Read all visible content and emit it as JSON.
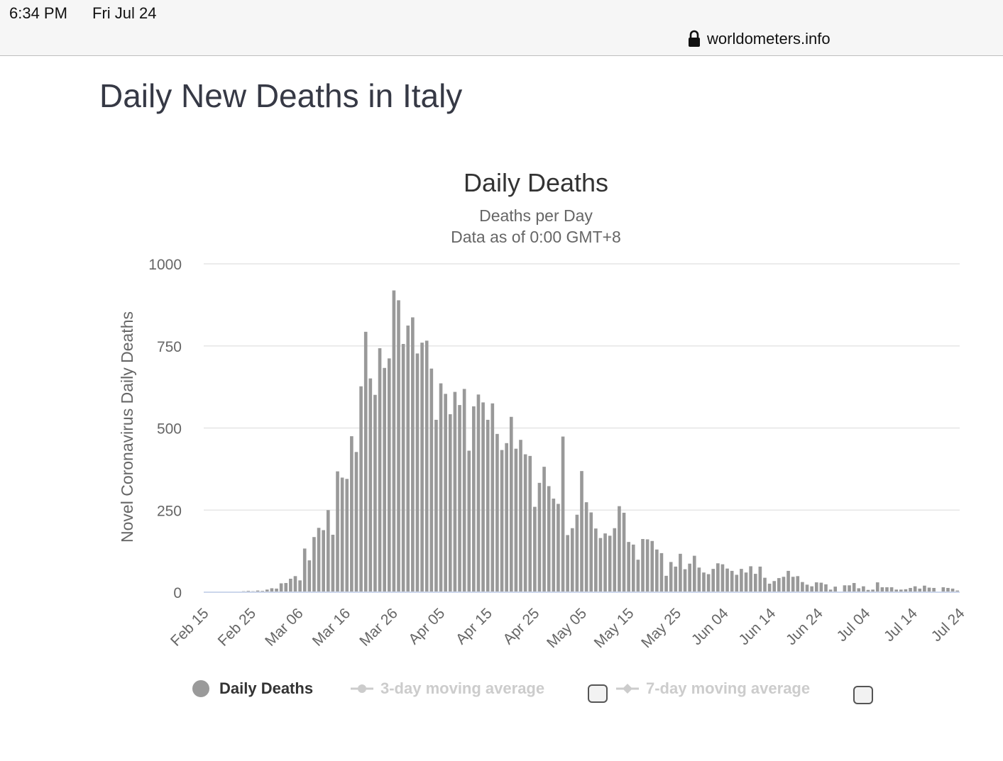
{
  "status_bar": {
    "time": "6:34 PM",
    "date": "Fri Jul 24",
    "url": "worldometers.info"
  },
  "page": {
    "title": "Daily New Deaths in Italy"
  },
  "legend": [
    {
      "label": "Daily Deaths",
      "active": true
    },
    {
      "label": "3-day moving average",
      "active": false
    },
    {
      "label": "7-day moving average",
      "active": false
    }
  ],
  "colors": {
    "bar": "#999999",
    "grid": "#e6e6e6",
    "axis": "#ccd6eb",
    "text": "#666666",
    "title": "#333333",
    "inactive_legend": "#cccccc"
  },
  "chart_data": {
    "type": "bar",
    "title": "Daily Deaths",
    "subtitle_lines": [
      "Deaths per Day",
      "Data as of 0:00 GMT+8"
    ],
    "ylabel": "Novel Coronavirus Daily Deaths",
    "xlabel": "",
    "ylim": [
      0,
      1000
    ],
    "yticks": [
      0,
      250,
      500,
      750,
      1000
    ],
    "xtick_labels": [
      "Feb 15",
      "Feb 25",
      "Mar 06",
      "Mar 16",
      "Mar 26",
      "Apr 05",
      "Apr 15",
      "Apr 25",
      "May 05",
      "May 15",
      "May 25",
      "Jun 04",
      "Jun 14",
      "Jun 24",
      "Jul 04",
      "Jul 14",
      "Jul 24"
    ],
    "start_date": "Feb 15",
    "end_date": "Jul 24",
    "series": [
      {
        "name": "Daily Deaths",
        "values": [
          0,
          0,
          0,
          0,
          0,
          0,
          1,
          2,
          3,
          4,
          3,
          5,
          4,
          8,
          12,
          11,
          27,
          28,
          41,
          49,
          36,
          133,
          97,
          168,
          196,
          189,
          250,
          175,
          368,
          349,
          345,
          475,
          427,
          627,
          793,
          651,
          601,
          743,
          683,
          712,
          919,
          889,
          756,
          812,
          837,
          727,
          760,
          766,
          681,
          525,
          636,
          604,
          542,
          610,
          570,
          619,
          431,
          566,
          602,
          578,
          525,
          575,
          482,
          433,
          454,
          534,
          437,
          464,
          420,
          415,
          260,
          333,
          382,
          323,
          285,
          269,
          474,
          174,
          195,
          236,
          369,
          274,
          243,
          194,
          165,
          179,
          172,
          195,
          262,
          242,
          153,
          145,
          99,
          162,
          161,
          156,
          130,
          119,
          50,
          92,
          78,
          117,
          70,
          87,
          111,
          75,
          60,
          55,
          71,
          88,
          85,
          72,
          65,
          53,
          71,
          60,
          79,
          56,
          78,
          44,
          26,
          34,
          43,
          47,
          65,
          47,
          49,
          31,
          23,
          18,
          30,
          29,
          24,
          8,
          17,
          0,
          21,
          21,
          28,
          12,
          18,
          7,
          8,
          30,
          15,
          15,
          15,
          8,
          8,
          9,
          13,
          18,
          11,
          20,
          14,
          13,
          0,
          15,
          13,
          11,
          5
        ]
      }
    ]
  }
}
